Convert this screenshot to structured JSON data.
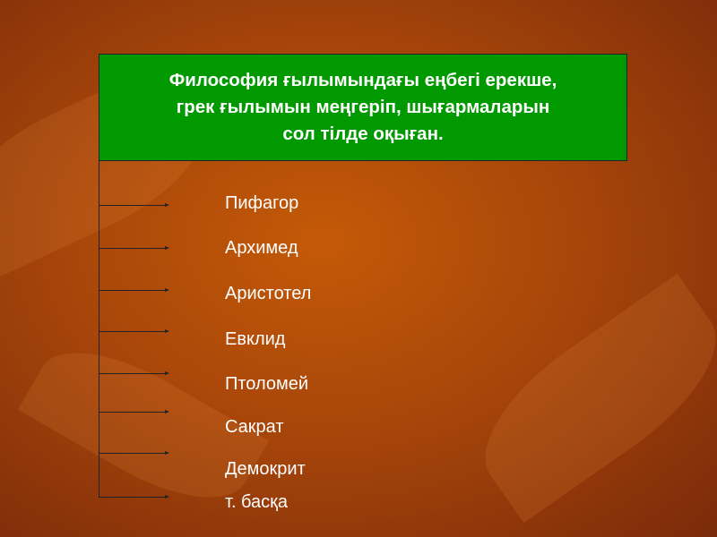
{
  "slide": {
    "title": "Философия ғылымындағы еңбегі ерекше,\nгрек ғылымын меңгеріп,  шығармаларын\nсол  тілде оқыған.",
    "items": [
      "Пифагор",
      "Архимед",
      "Аристотел",
      "Евклид",
      "Птоломей",
      "Сакрат",
      "Демокрит",
      "т. басқа"
    ]
  },
  "colors": {
    "title_box": "#009900",
    "background": "#b24e0a",
    "text": "#ffffff"
  }
}
